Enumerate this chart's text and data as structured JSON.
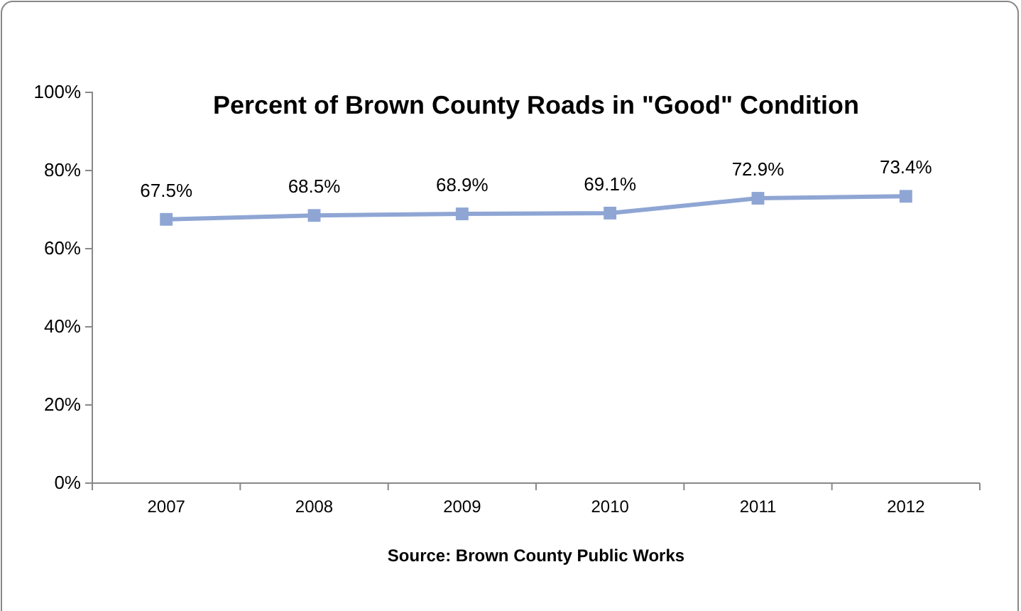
{
  "chart_data": {
    "type": "line",
    "title": "Percent of Brown County Roads in \"Good\" Condition",
    "categories": [
      "2007",
      "2008",
      "2009",
      "2010",
      "2011",
      "2012"
    ],
    "series": [
      {
        "color": "#8fa6d4",
        "values": [
          67.5,
          68.5,
          68.9,
          69.1,
          72.9,
          73.4
        ]
      }
    ],
    "ylim": [
      0,
      100
    ],
    "yticks": [
      {
        "value": 0,
        "label": "0%"
      },
      {
        "value": 20,
        "label": "20%"
      },
      {
        "value": 40,
        "label": "40%"
      },
      {
        "value": 60,
        "label": "60%"
      },
      {
        "value": 80,
        "label": "80%"
      },
      {
        "value": 100,
        "label": "100%"
      }
    ],
    "value_labels": [
      "67.5%",
      "68.5%",
      "68.9%",
      "69.1%",
      "72.9%",
      "73.4%"
    ],
    "marker": "square",
    "line_style": "solid",
    "annotations": [
      "Source: Brown County Public Works"
    ]
  }
}
